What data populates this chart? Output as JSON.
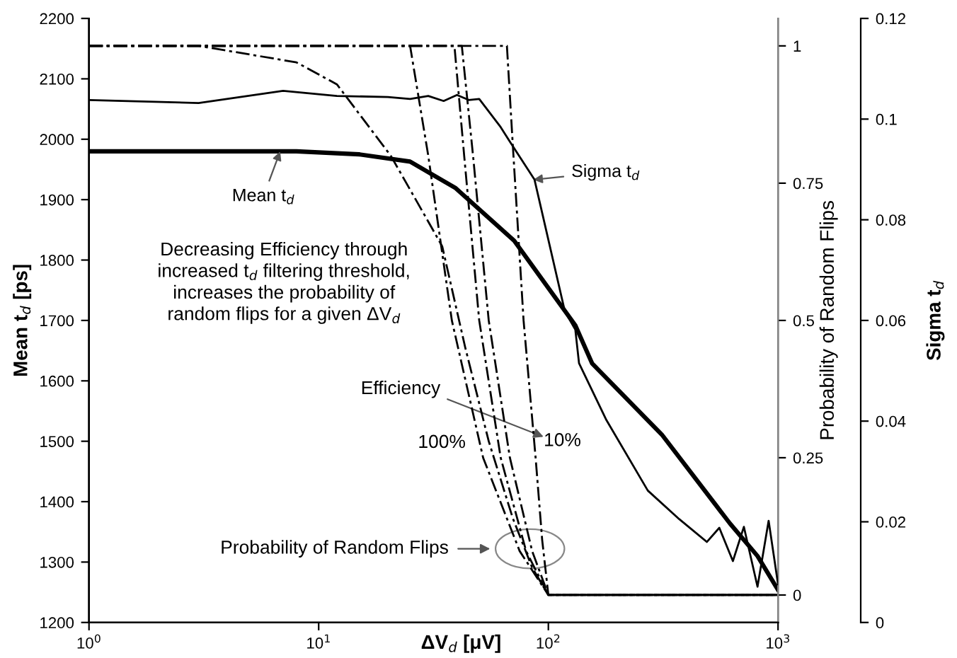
{
  "chart_data": {
    "type": "line",
    "xlabel": "ΔV$_{d}$ [μV]",
    "ylabel": "Mean t$_{d}$ [ps]",
    "y2label": "Probability of Random Flips",
    "y3label": "Sigma t$_{d}$",
    "log": "x",
    "xlim": [
      1,
      1000
    ],
    "xticks": [
      {
        "value": 1,
        "label": "10$^{0}$"
      },
      {
        "value": 10,
        "label": "10$^{1}$"
      },
      {
        "value": 100,
        "label": "10$^{2}$"
      },
      {
        "value": 1000,
        "label": "10$^{3}$"
      }
    ],
    "ylim": [
      1200,
      2200
    ],
    "yticks": [
      1200,
      1300,
      1400,
      1500,
      1600,
      1700,
      1800,
      1900,
      2000,
      2100,
      2200
    ],
    "y2lim": [
      -0.05,
      1.05
    ],
    "y2ticks": [
      0,
      0.25,
      0.5,
      0.75,
      1
    ],
    "y3lim": [
      0,
      0.12
    ],
    "y3ticks": [
      0,
      0.02,
      0.04,
      0.06,
      0.08,
      0.1,
      0.12
    ],
    "grid": false,
    "series": [
      {
        "color": "#000000",
        "line_style": "solid",
        "x": [
          1,
          3,
          8,
          15,
          25,
          39.5,
          71,
          131,
          155,
          312,
          617,
          814,
          1000
        ],
        "values": [
          1980,
          1980,
          1980,
          1975,
          1963,
          1919,
          1832,
          1692,
          1629,
          1511,
          1364,
          1310,
          1254
        ]
      },
      {
        "axis": "y3",
        "color": "#000000",
        "line_style": "solid",
        "x": [
          1,
          3,
          7,
          12,
          20,
          25,
          30,
          35,
          40,
          45,
          50,
          62,
          68,
          87,
          118,
          131,
          136,
          179,
          271,
          372,
          490,
          555,
          636,
          710,
          814,
          910,
          1000
        ],
        "values": [
          0.1038,
          0.1032,
          0.1056,
          0.1046,
          0.1044,
          0.104,
          0.1046,
          0.1036,
          0.1048,
          0.1038,
          0.104,
          0.0984,
          0.0955,
          0.088,
          0.0618,
          0.0582,
          0.0515,
          0.0402,
          0.0262,
          0.0205,
          0.016,
          0.0188,
          0.0122,
          0.019,
          0.0071,
          0.0202,
          0.0076
        ]
      },
      {
        "axis": "y2",
        "color": "#000000",
        "line_style": "dashed",
        "x": [
          1,
          3,
          8,
          12,
          20.6,
          30,
          34.5,
          43.5,
          55,
          70,
          85,
          100,
          1000
        ],
        "values": [
          1,
          1,
          0.97,
          0.93,
          0.8,
          0.68,
          0.635,
          0.45,
          0.28,
          0.14,
          0.05,
          0,
          0
        ]
      },
      {
        "axis": "y2",
        "color": "#000000",
        "line_style": "dashed",
        "x": [
          1,
          25,
          30,
          38,
          52,
          75,
          100,
          1000
        ],
        "values": [
          1,
          1,
          0.8,
          0.5,
          0.25,
          0.08,
          0,
          0
        ]
      },
      {
        "axis": "y2",
        "color": "#000000",
        "line_style": "dashed",
        "x": [
          1,
          39,
          43,
          50,
          62,
          80,
          100,
          1000
        ],
        "values": [
          1,
          1,
          0.8,
          0.5,
          0.25,
          0.08,
          0,
          0
        ]
      },
      {
        "axis": "y2",
        "color": "#000000",
        "line_style": "dashed",
        "x": [
          1,
          42,
          47,
          55,
          68,
          85,
          100,
          1000
        ],
        "values": [
          1,
          1,
          0.8,
          0.5,
          0.25,
          0.08,
          0,
          0
        ]
      },
      {
        "axis": "y2",
        "color": "#000000",
        "line_style": "dashed",
        "x": [
          1,
          66,
          70,
          78,
          88,
          94,
          100,
          1000
        ],
        "values": [
          1,
          1,
          0.82,
          0.5,
          0.25,
          0.1,
          0,
          0
        ]
      }
    ],
    "annotations": [
      {
        "text": "Mean t$_{d}$",
        "x": 6.8,
        "y": 1980
      },
      {
        "text": "Sigma t$_{d}$",
        "x": 86,
        "y": 1933
      },
      "Decreasing Efficiency through\nincreased t$_{d}$ filtering threshold,\nincreases the probability of\nrandom flips for a given ΔV$_{d}$",
      "Efficiency",
      "100%",
      "10%",
      "Probability of Random Flips"
    ]
  }
}
